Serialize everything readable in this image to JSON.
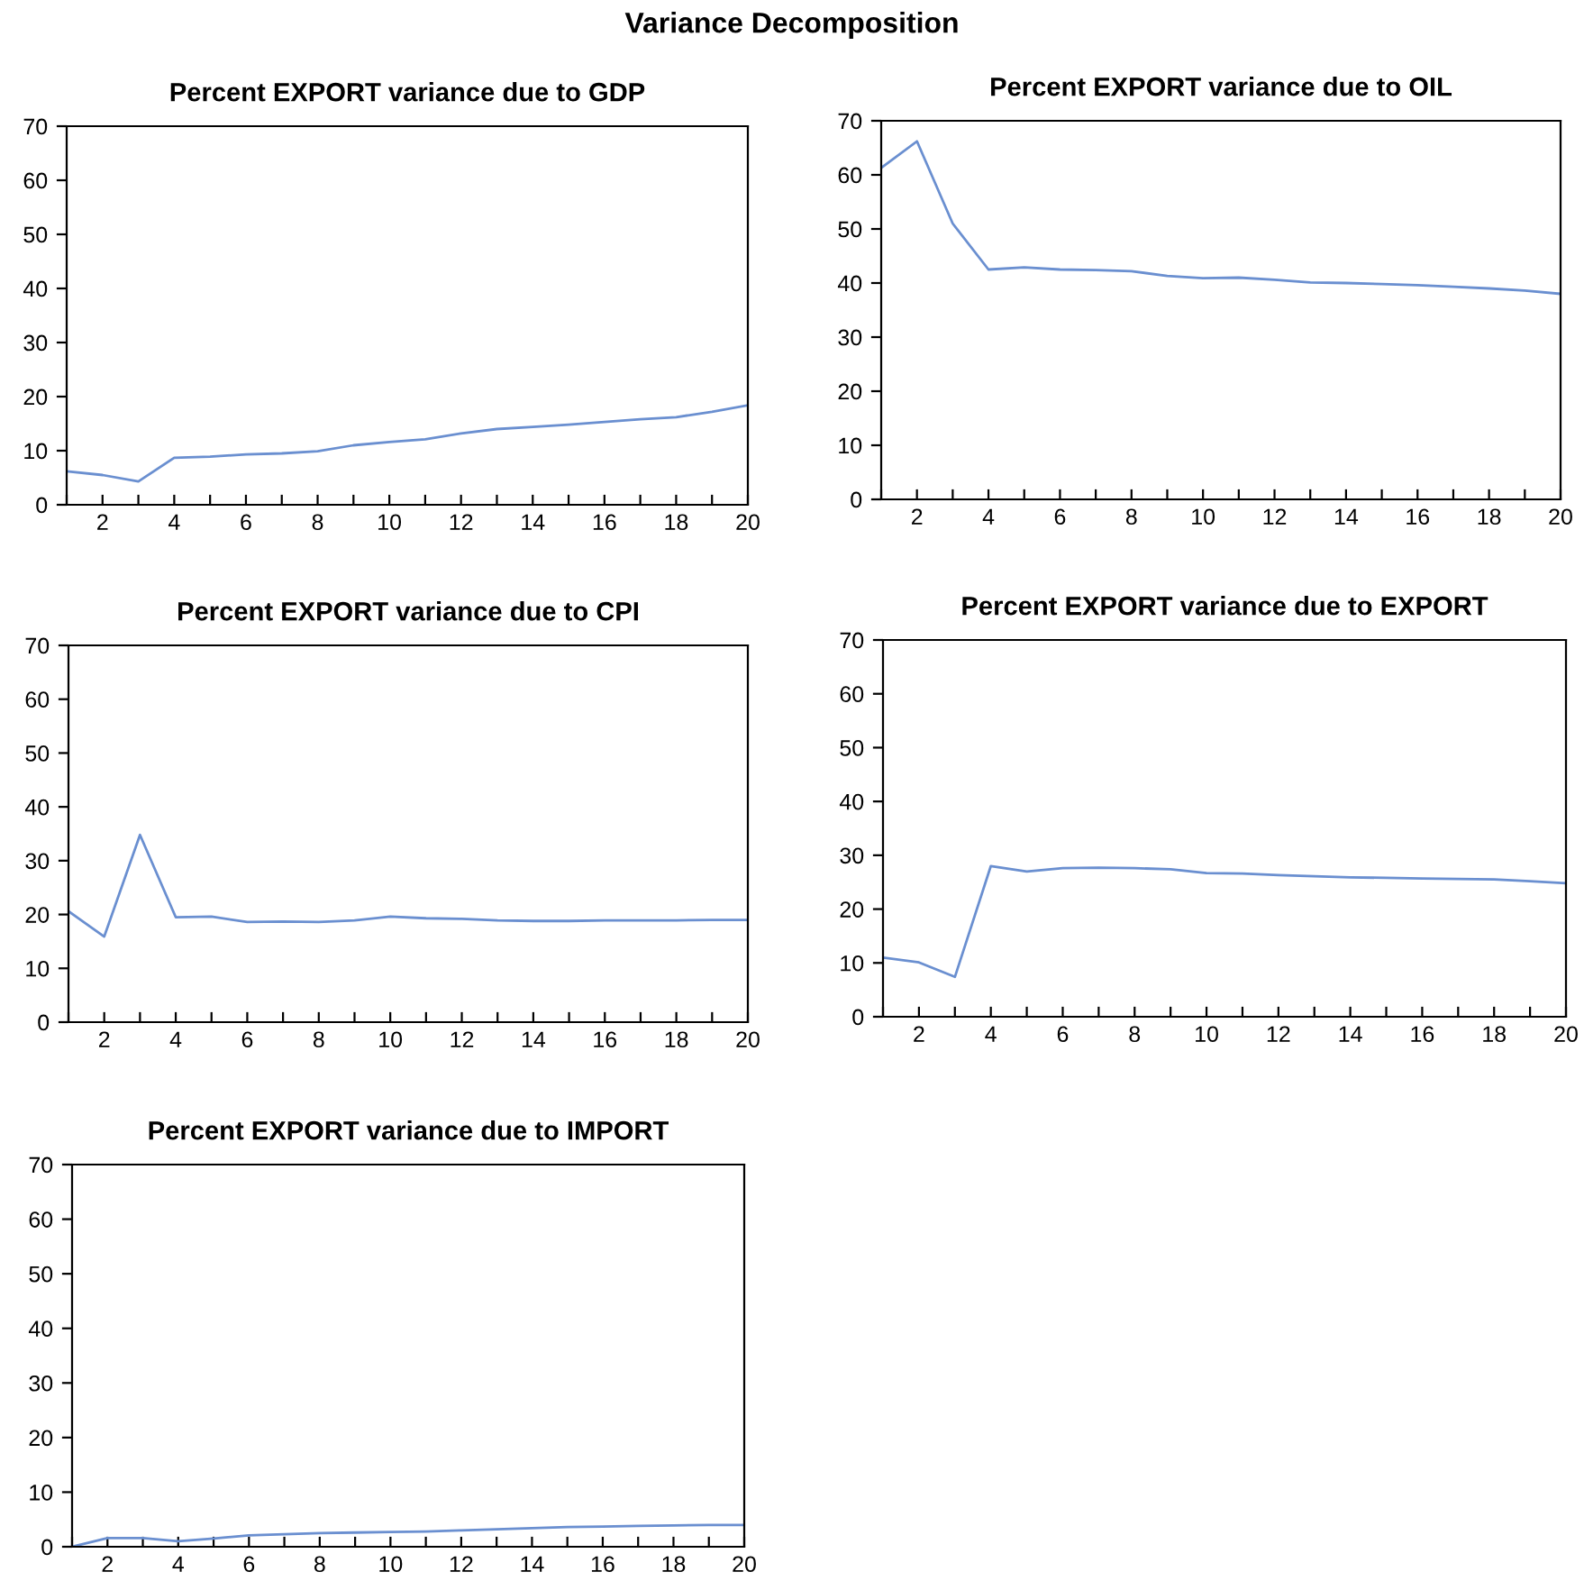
{
  "chart_data": [
    {
      "type": "line",
      "title": "Percent EXPORT variance due to GDP",
      "annotations": [
        "Variance Decomposition"
      ],
      "x": [
        1,
        2,
        3,
        4,
        5,
        6,
        7,
        8,
        9,
        10,
        11,
        12,
        13,
        14,
        15,
        16,
        17,
        18,
        19,
        20
      ],
      "series": [
        {
          "color": "#6a8fd0",
          "values": [
            6.2,
            5.5,
            4.3,
            8.7,
            8.9,
            9.3,
            9.5,
            9.9,
            11.0,
            11.6,
            12.1,
            13.2,
            14.0,
            14.4,
            14.8,
            15.3,
            15.8,
            16.2,
            17.2,
            18.4
          ]
        }
      ],
      "xlim": [
        1,
        20
      ],
      "ylim": [
        0,
        70
      ],
      "yticks": [
        0,
        10,
        20,
        30,
        40,
        50,
        60,
        70
      ],
      "xticks": [
        {
          "value": 1,
          "label": null
        },
        2,
        {
          "value": 3,
          "label": null
        },
        4,
        {
          "value": 5,
          "label": null
        },
        6,
        {
          "value": 7,
          "label": null
        },
        8,
        {
          "value": 9,
          "label": null
        },
        10,
        {
          "value": 11,
          "label": null
        },
        12,
        {
          "value": 13,
          "label": null
        },
        14,
        {
          "value": 15,
          "label": null
        },
        16,
        {
          "value": 17,
          "label": null
        },
        18,
        {
          "value": 19,
          "label": null
        },
        20
      ],
      "grid": false
    },
    {
      "type": "line",
      "title": "Percent EXPORT variance due to OIL",
      "x": [
        1,
        2,
        3,
        4,
        5,
        6,
        7,
        8,
        9,
        10,
        11,
        12,
        13,
        14,
        15,
        16,
        17,
        18,
        19,
        20
      ],
      "series": [
        {
          "color": "#6a8fd0",
          "values": [
            61.3,
            66.2,
            51.0,
            42.5,
            42.9,
            42.5,
            42.4,
            42.2,
            41.3,
            40.9,
            41.0,
            40.6,
            40.1,
            40.0,
            39.8,
            39.6,
            39.3,
            39.0,
            38.6,
            38.0
          ]
        }
      ],
      "xlim": [
        1,
        20
      ],
      "ylim": [
        0,
        70
      ],
      "yticks": [
        0,
        10,
        20,
        30,
        40,
        50,
        60,
        70
      ],
      "xticks": [
        {
          "value": 1,
          "label": null
        },
        2,
        {
          "value": 3,
          "label": null
        },
        4,
        {
          "value": 5,
          "label": null
        },
        6,
        {
          "value": 7,
          "label": null
        },
        8,
        {
          "value": 9,
          "label": null
        },
        10,
        {
          "value": 11,
          "label": null
        },
        12,
        {
          "value": 13,
          "label": null
        },
        14,
        {
          "value": 15,
          "label": null
        },
        16,
        {
          "value": 17,
          "label": null
        },
        18,
        {
          "value": 19,
          "label": null
        },
        20
      ],
      "grid": false
    },
    {
      "type": "line",
      "title": "Percent EXPORT variance due to CPI",
      "x": [
        1,
        2,
        3,
        4,
        5,
        6,
        7,
        8,
        9,
        10,
        11,
        12,
        13,
        14,
        15,
        16,
        17,
        18,
        19,
        20
      ],
      "series": [
        {
          "color": "#6a8fd0",
          "values": [
            20.6,
            15.9,
            34.8,
            19.5,
            19.6,
            18.6,
            18.7,
            18.6,
            18.9,
            19.6,
            19.3,
            19.2,
            18.9,
            18.8,
            18.8,
            18.9,
            18.9,
            18.9,
            19.0,
            19.0
          ]
        }
      ],
      "xlim": [
        1,
        20
      ],
      "ylim": [
        0,
        70
      ],
      "yticks": [
        0,
        10,
        20,
        30,
        40,
        50,
        60,
        70
      ],
      "xticks": [
        {
          "value": 1,
          "label": null
        },
        2,
        {
          "value": 3,
          "label": null
        },
        4,
        {
          "value": 5,
          "label": null
        },
        6,
        {
          "value": 7,
          "label": null
        },
        8,
        {
          "value": 9,
          "label": null
        },
        10,
        {
          "value": 11,
          "label": null
        },
        12,
        {
          "value": 13,
          "label": null
        },
        14,
        {
          "value": 15,
          "label": null
        },
        16,
        {
          "value": 17,
          "label": null
        },
        18,
        {
          "value": 19,
          "label": null
        },
        20
      ],
      "grid": false
    },
    {
      "type": "line",
      "title": "Percent EXPORT variance due to EXPORT",
      "x": [
        1,
        2,
        3,
        4,
        5,
        6,
        7,
        8,
        9,
        10,
        11,
        12,
        13,
        14,
        15,
        16,
        17,
        18,
        19,
        20
      ],
      "series": [
        {
          "color": "#6a8fd0",
          "values": [
            11.0,
            10.1,
            7.4,
            28.0,
            27.0,
            27.6,
            27.7,
            27.6,
            27.4,
            26.7,
            26.6,
            26.3,
            26.1,
            25.9,
            25.8,
            25.7,
            25.6,
            25.5,
            25.2,
            24.8
          ]
        }
      ],
      "xlim": [
        1,
        20
      ],
      "ylim": [
        0,
        70
      ],
      "yticks": [
        0,
        10,
        20,
        30,
        40,
        50,
        60,
        70
      ],
      "xticks": [
        {
          "value": 1,
          "label": null
        },
        2,
        {
          "value": 3,
          "label": null
        },
        4,
        {
          "value": 5,
          "label": null
        },
        6,
        {
          "value": 7,
          "label": null
        },
        8,
        {
          "value": 9,
          "label": null
        },
        10,
        {
          "value": 11,
          "label": null
        },
        12,
        {
          "value": 13,
          "label": null
        },
        14,
        {
          "value": 15,
          "label": null
        },
        16,
        {
          "value": 17,
          "label": null
        },
        18,
        {
          "value": 19,
          "label": null
        },
        20
      ],
      "grid": false
    },
    {
      "type": "line",
      "title": "Percent EXPORT variance due to IMPORT",
      "x": [
        1,
        2,
        3,
        4,
        5,
        6,
        7,
        8,
        9,
        10,
        11,
        12,
        13,
        14,
        15,
        16,
        17,
        18,
        19,
        20
      ],
      "series": [
        {
          "color": "#6a8fd0",
          "values": [
            0.0,
            1.6,
            1.6,
            1.0,
            1.5,
            2.1,
            2.3,
            2.5,
            2.6,
            2.7,
            2.8,
            3.0,
            3.2,
            3.4,
            3.6,
            3.7,
            3.8,
            3.9,
            4.0,
            4.0
          ]
        }
      ],
      "xlim": [
        1,
        20
      ],
      "ylim": [
        0,
        70
      ],
      "yticks": [
        0,
        10,
        20,
        30,
        40,
        50,
        60,
        70
      ],
      "xticks": [
        {
          "value": 1,
          "label": null
        },
        2,
        {
          "value": 3,
          "label": null
        },
        4,
        {
          "value": 5,
          "label": null
        },
        6,
        {
          "value": 7,
          "label": null
        },
        8,
        {
          "value": 9,
          "label": null
        },
        10,
        {
          "value": 11,
          "label": null
        },
        12,
        {
          "value": 13,
          "label": null
        },
        14,
        {
          "value": 15,
          "label": null
        },
        16,
        {
          "value": 17,
          "label": null
        },
        18,
        {
          "value": 19,
          "label": null
        },
        20
      ],
      "grid": false
    }
  ]
}
